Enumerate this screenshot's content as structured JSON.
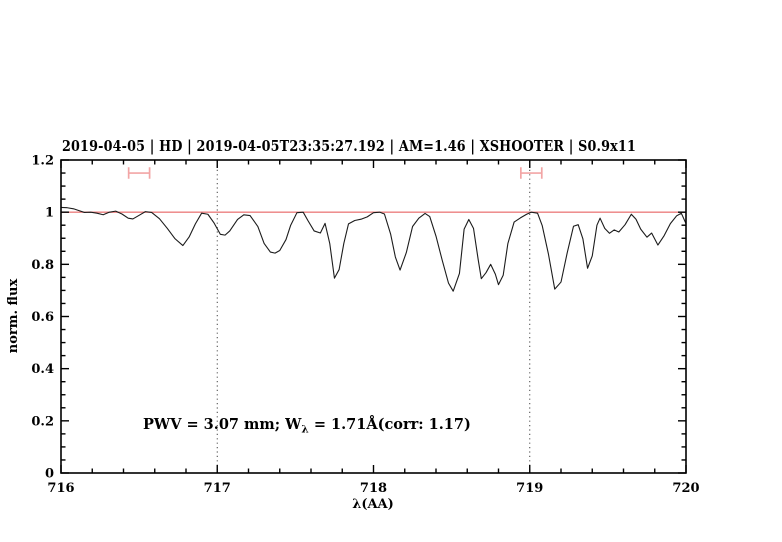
{
  "title": {
    "text": "2019-04-05 | HD | 2019-04-05T23:35:27.192 | AM=1.46 | XSHOOTER | S0.9x11",
    "color": "#1414d2"
  },
  "annotation": {
    "prefix": "PWV = 3.07 mm; W",
    "subscript": "λ",
    "suffix": " = 1.71Å(corr: 1.17)",
    "color": "#1414d2"
  },
  "axes": {
    "x": {
      "label": "λ(AA)",
      "min": 716,
      "max": 720,
      "major_ticks": [
        716,
        717,
        718,
        719,
        720
      ],
      "tick_labels": [
        "716",
        "717",
        "718",
        "719",
        "720"
      ],
      "minor_step": 0.2
    },
    "y": {
      "label": "norm. flux",
      "min": 0,
      "max": 1.2,
      "major_ticks": [
        0,
        0.2,
        0.4,
        0.6,
        0.8,
        1.0,
        1.2
      ],
      "tick_labels": [
        "0",
        "0.2",
        "0.4",
        "0.6",
        "0.8",
        "1",
        "1.2"
      ],
      "minor_step": 0.05
    }
  },
  "reference_line": {
    "flux": 1.0,
    "color": "#ec7f7f"
  },
  "dotted_lines": {
    "x_values": [
      717,
      719
    ],
    "color": "#444444"
  },
  "band_markers": {
    "color": "#f2a5a5",
    "flux": 1.15,
    "cap_half_height_flux": 0.022,
    "items": [
      {
        "center": 716.5,
        "half_width": 0.067
      },
      {
        "center": 719.01,
        "half_width": 0.067
      }
    ]
  },
  "chart_data": {
    "type": "line",
    "title": "2019-04-05 | HD | 2019-04-05T23:35:27.192 | AM=1.46 | XSHOOTER | S0.9x11",
    "xlabel": "λ(AA)",
    "ylabel": "norm. flux",
    "xlim": [
      716,
      720
    ],
    "ylim": [
      0,
      1.2
    ],
    "grid": "dotted vertical lines at x=717 and x=719",
    "legend": "none",
    "annotations": [
      "PWV = 3.07 mm; Wλ = 1.71Å(corr: 1.17)",
      "continuum reference line at flux=1.0",
      "interval markers at 716.5 and 719.01 (flux 1.15)"
    ],
    "series": [
      {
        "name": "normalized telluric spectrum",
        "color": "#1c1c1c",
        "x": [
          716.0,
          716.04,
          716.08,
          716.12,
          716.15,
          716.19,
          716.23,
          716.27,
          716.31,
          716.35,
          716.39,
          716.43,
          716.46,
          716.5,
          716.54,
          716.58,
          716.63,
          716.68,
          716.73,
          716.78,
          716.82,
          716.86,
          716.9,
          716.94,
          716.98,
          717.02,
          717.05,
          717.08,
          717.13,
          717.17,
          717.21,
          717.26,
          717.3,
          717.34,
          717.37,
          717.4,
          717.44,
          717.47,
          717.51,
          717.55,
          717.58,
          717.62,
          717.66,
          717.69,
          717.72,
          717.75,
          717.78,
          717.81,
          717.84,
          717.88,
          717.92,
          717.96,
          718.0,
          718.04,
          718.07,
          718.11,
          718.14,
          718.17,
          718.21,
          718.25,
          718.29,
          718.33,
          718.36,
          718.4,
          718.44,
          718.48,
          718.51,
          718.55,
          718.58,
          718.61,
          718.64,
          718.67,
          718.69,
          718.72,
          718.75,
          718.78,
          718.8,
          718.83,
          718.86,
          718.9,
          718.94,
          718.98,
          719.01,
          719.05,
          719.08,
          719.12,
          719.16,
          719.2,
          719.24,
          719.28,
          719.31,
          719.34,
          719.37,
          719.4,
          719.43,
          719.45,
          719.48,
          719.51,
          719.54,
          719.57,
          719.61,
          719.65,
          719.68,
          719.71,
          719.75,
          719.78,
          719.82,
          719.86,
          719.9,
          719.94,
          719.97,
          720.0
        ],
        "y": [
          1.018,
          1.017,
          1.013,
          1.005,
          0.999,
          1.0,
          0.996,
          0.99,
          1.0,
          1.004,
          0.993,
          0.977,
          0.974,
          0.988,
          1.002,
          0.999,
          0.975,
          0.938,
          0.898,
          0.872,
          0.905,
          0.955,
          0.996,
          0.992,
          0.958,
          0.915,
          0.912,
          0.928,
          0.972,
          0.99,
          0.987,
          0.945,
          0.88,
          0.847,
          0.843,
          0.853,
          0.895,
          0.95,
          0.998,
          1.0,
          0.968,
          0.928,
          0.92,
          0.957,
          0.88,
          0.747,
          0.78,
          0.88,
          0.955,
          0.968,
          0.973,
          0.982,
          0.998,
          1.0,
          0.993,
          0.915,
          0.828,
          0.778,
          0.845,
          0.945,
          0.977,
          0.995,
          0.983,
          0.908,
          0.815,
          0.728,
          0.697,
          0.765,
          0.935,
          0.972,
          0.938,
          0.818,
          0.745,
          0.768,
          0.8,
          0.762,
          0.722,
          0.758,
          0.88,
          0.962,
          0.978,
          0.992,
          1.0,
          0.996,
          0.948,
          0.838,
          0.705,
          0.732,
          0.845,
          0.946,
          0.952,
          0.898,
          0.785,
          0.832,
          0.95,
          0.977,
          0.938,
          0.919,
          0.932,
          0.924,
          0.952,
          0.992,
          0.973,
          0.935,
          0.904,
          0.92,
          0.874,
          0.91,
          0.956,
          0.986,
          0.996,
          0.956
        ]
      }
    ]
  }
}
